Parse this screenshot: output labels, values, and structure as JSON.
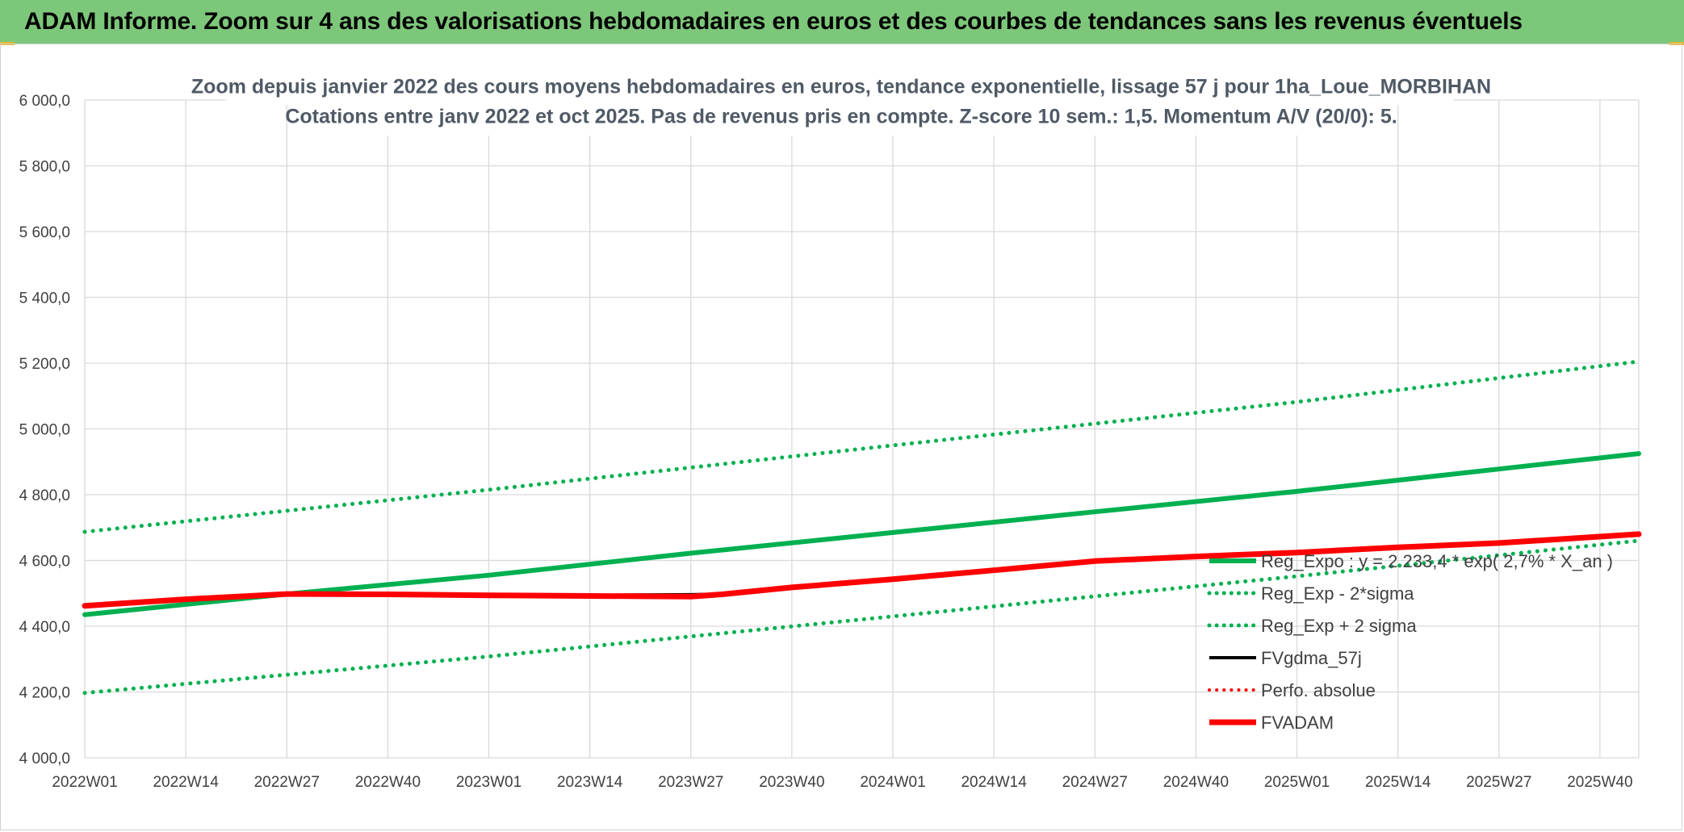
{
  "header": {
    "banner_title": "ADAM Informe. Zoom sur 4 ans des valorisations hebdomadaires en euros et des courbes de tendances sans les revenus éventuels"
  },
  "chart_data": {
    "type": "line",
    "title": "Zoom depuis janvier 2022 des cours moyens hebdomadaires en euros, tendance exponentielle, lissage 57 j pour 1ha_Loue_MORBIHAN",
    "subtitle": "Cotations entre janv 2022 et oct 2025. Pas de revenus pris en compte. Z-score 10 sem.: 1,5. Momentum A/V (20/0): 5.",
    "xlabel": "",
    "ylabel": "",
    "ylim": [
      4000,
      6000
    ],
    "yticks": [
      "4 000,0",
      "4 200,0",
      "4 400,0",
      "4 600,0",
      "4 800,0",
      "5 000,0",
      "5 200,0",
      "5 400,0",
      "5 600,0",
      "5 800,0",
      "6 000,0"
    ],
    "xticks": [
      "2022W01",
      "2022W14",
      "2022W27",
      "2022W40",
      "2023W01",
      "2023W14",
      "2023W27",
      "2023W40",
      "2024W01",
      "2024W14",
      "2024W27",
      "2024W40",
      "2025W01",
      "2025W14",
      "2025W27",
      "2025W40"
    ],
    "x_range": [
      0,
      200
    ],
    "xtick_positions": [
      0,
      13,
      26,
      39,
      52,
      65,
      78,
      91,
      104,
      117,
      130,
      143,
      156,
      169,
      182,
      195
    ],
    "grid": true,
    "legend_position": "center-right",
    "series": [
      {
        "name": "Reg_Expo : y = 2 233,4 * exp( 2,7% * X_an )",
        "color": "#00b050",
        "style": "solid",
        "width": 6,
        "x": [
          0,
          26,
          52,
          78,
          104,
          130,
          156,
          182,
          200
        ],
        "values": [
          4435,
          4498,
          4555,
          4622,
          4685,
          4748,
          4810,
          4878,
          4925
        ]
      },
      {
        "name": "Reg_Exp - 2*sigma",
        "color": "#00b050",
        "style": "dotted",
        "width": 5,
        "x": [
          0,
          52,
          104,
          156,
          200
        ],
        "values": [
          4197,
          4308,
          4430,
          4552,
          4660
        ]
      },
      {
        "name": "Reg_Exp + 2 sigma",
        "color": "#00b050",
        "style": "dotted",
        "width": 5,
        "x": [
          0,
          52,
          104,
          156,
          200
        ],
        "values": [
          4687,
          4815,
          4950,
          5082,
          5205
        ]
      },
      {
        "name": "FVgdma_57j",
        "color": "#000000",
        "style": "solid",
        "width": 4,
        "x": [
          0,
          13,
          26,
          39,
          52,
          65,
          70,
          78,
          82,
          91,
          104,
          117,
          130,
          143,
          156,
          169,
          182,
          200
        ],
        "values": [
          4462,
          4482,
          4498,
          4497,
          4495,
          4493,
          4495,
          4496,
          4498,
          4520,
          4545,
          4572,
          4600,
          4612,
          4625,
          4640,
          4655,
          4682
        ]
      },
      {
        "name": "Perfo. absolue",
        "color": "#ff0000",
        "style": "dotted",
        "width": 4,
        "x": [],
        "values": []
      },
      {
        "name": "FVADAM",
        "color": "#ff0000",
        "style": "solid",
        "width": 7,
        "x": [
          0,
          13,
          26,
          39,
          52,
          65,
          72,
          78,
          82,
          91,
          104,
          117,
          130,
          143,
          156,
          169,
          182,
          200
        ],
        "values": [
          4462,
          4482,
          4498,
          4497,
          4494,
          4492,
          4491,
          4490,
          4497,
          4518,
          4543,
          4570,
          4598,
          4612,
          4624,
          4640,
          4653,
          4680
        ]
      }
    ]
  }
}
